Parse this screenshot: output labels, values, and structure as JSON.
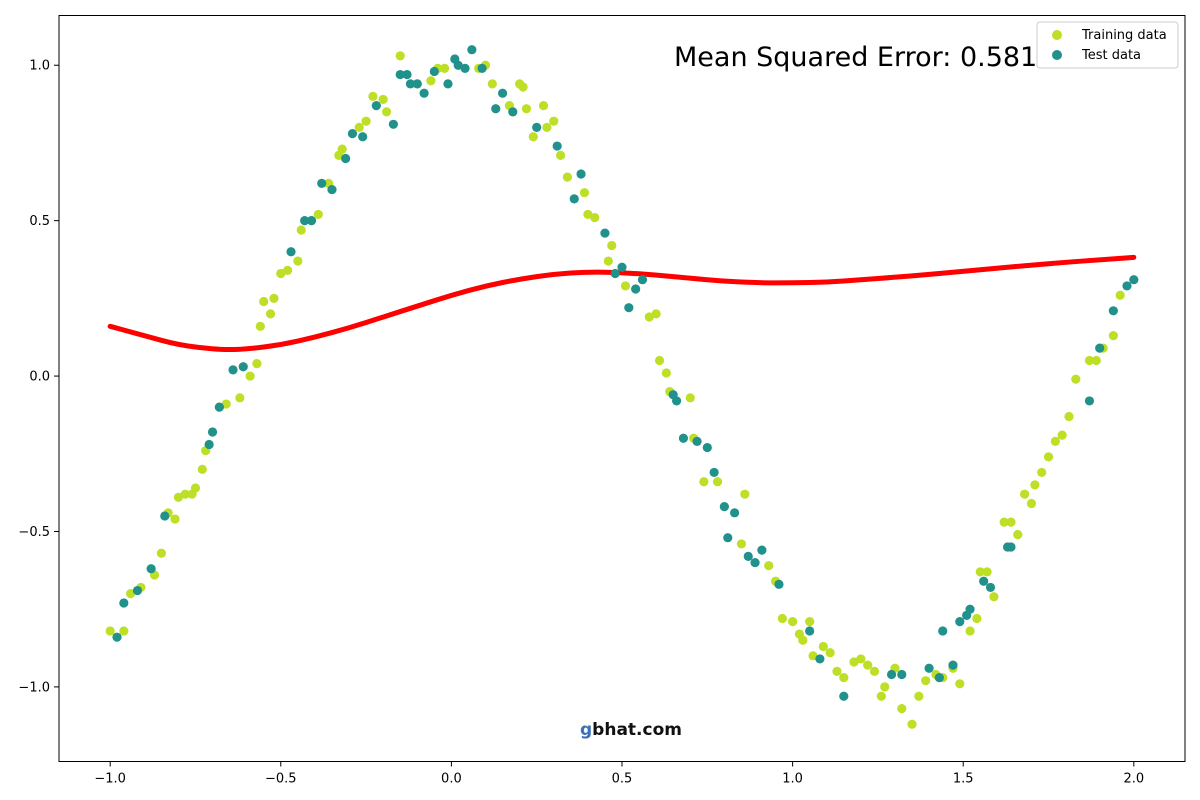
{
  "chart_data": {
    "type": "scatter",
    "xlim": [
      -1.15,
      2.15
    ],
    "ylim": [
      -1.24,
      1.16
    ],
    "xticks": [
      -1.0,
      -0.5,
      0.0,
      0.5,
      1.0,
      1.5,
      2.0
    ],
    "xtick_labels": [
      "−1.0",
      "−0.5",
      "0.0",
      "0.5",
      "1.0",
      "1.5",
      "2.0"
    ],
    "yticks": [
      -1.0,
      -0.5,
      0.0,
      0.5,
      1.0
    ],
    "ytick_labels": [
      "−1.0",
      "−0.5",
      "0.0",
      "0.5",
      "1.0"
    ],
    "grid": false,
    "legend_position": "top-right",
    "annotation": "Mean Squared Error: 0.581",
    "colors": {
      "training": "#bddf26",
      "test": "#21918c",
      "fit": "#ff0000"
    },
    "series": [
      {
        "name": "Training data",
        "kind": "scatter",
        "points": [
          [
            -1.0,
            -0.82
          ],
          [
            -0.96,
            -0.82
          ],
          [
            -0.94,
            -0.7
          ],
          [
            -0.91,
            -0.68
          ],
          [
            -0.87,
            -0.64
          ],
          [
            -0.85,
            -0.57
          ],
          [
            -0.83,
            -0.44
          ],
          [
            -0.81,
            -0.46
          ],
          [
            -0.8,
            -0.39
          ],
          [
            -0.78,
            -0.38
          ],
          [
            -0.76,
            -0.38
          ],
          [
            -0.75,
            -0.36
          ],
          [
            -0.73,
            -0.3
          ],
          [
            -0.72,
            -0.24
          ],
          [
            -0.68,
            -0.1
          ],
          [
            -0.66,
            -0.09
          ],
          [
            -0.62,
            -0.07
          ],
          [
            -0.59,
            0.0
          ],
          [
            -0.57,
            0.04
          ],
          [
            -0.56,
            0.16
          ],
          [
            -0.55,
            0.24
          ],
          [
            -0.53,
            0.2
          ],
          [
            -0.52,
            0.25
          ],
          [
            -0.5,
            0.33
          ],
          [
            -0.48,
            0.34
          ],
          [
            -0.45,
            0.37
          ],
          [
            -0.44,
            0.47
          ],
          [
            -0.41,
            0.5
          ],
          [
            -0.39,
            0.52
          ],
          [
            -0.36,
            0.62
          ],
          [
            -0.33,
            0.71
          ],
          [
            -0.32,
            0.73
          ],
          [
            -0.27,
            0.8
          ],
          [
            -0.25,
            0.82
          ],
          [
            -0.23,
            0.9
          ],
          [
            -0.2,
            0.89
          ],
          [
            -0.19,
            0.85
          ],
          [
            -0.15,
            1.03
          ],
          [
            -0.1,
            0.94
          ],
          [
            -0.06,
            0.95
          ],
          [
            -0.04,
            0.99
          ],
          [
            -0.02,
            0.99
          ],
          [
            0.08,
            0.99
          ],
          [
            0.1,
            1.0
          ],
          [
            0.12,
            0.94
          ],
          [
            0.17,
            0.87
          ],
          [
            0.2,
            0.94
          ],
          [
            0.21,
            0.93
          ],
          [
            0.22,
            0.86
          ],
          [
            0.24,
            0.77
          ],
          [
            0.27,
            0.87
          ],
          [
            0.28,
            0.8
          ],
          [
            0.3,
            0.82
          ],
          [
            0.32,
            0.71
          ],
          [
            0.34,
            0.64
          ],
          [
            0.39,
            0.59
          ],
          [
            0.4,
            0.52
          ],
          [
            0.42,
            0.51
          ],
          [
            0.46,
            0.37
          ],
          [
            0.47,
            0.42
          ],
          [
            0.51,
            0.29
          ],
          [
            0.58,
            0.19
          ],
          [
            0.6,
            0.2
          ],
          [
            0.61,
            0.05
          ],
          [
            0.63,
            0.01
          ],
          [
            0.64,
            -0.05
          ],
          [
            0.7,
            -0.07
          ],
          [
            0.71,
            -0.2
          ],
          [
            0.74,
            -0.34
          ],
          [
            0.78,
            -0.34
          ],
          [
            0.85,
            -0.54
          ],
          [
            0.86,
            -0.38
          ],
          [
            0.93,
            -0.61
          ],
          [
            0.95,
            -0.66
          ],
          [
            0.97,
            -0.78
          ],
          [
            1.0,
            -0.79
          ],
          [
            1.02,
            -0.83
          ],
          [
            1.03,
            -0.85
          ],
          [
            1.05,
            -0.79
          ],
          [
            1.06,
            -0.9
          ],
          [
            1.09,
            -0.87
          ],
          [
            1.11,
            -0.89
          ],
          [
            1.13,
            -0.95
          ],
          [
            1.15,
            -0.97
          ],
          [
            1.18,
            -0.92
          ],
          [
            1.2,
            -0.91
          ],
          [
            1.22,
            -0.93
          ],
          [
            1.24,
            -0.95
          ],
          [
            1.26,
            -1.03
          ],
          [
            1.27,
            -1.0
          ],
          [
            1.3,
            -0.94
          ],
          [
            1.32,
            -1.07
          ],
          [
            1.35,
            -1.12
          ],
          [
            1.37,
            -1.03
          ],
          [
            1.39,
            -0.98
          ],
          [
            1.42,
            -0.96
          ],
          [
            1.44,
            -0.97
          ],
          [
            1.47,
            -0.94
          ],
          [
            1.49,
            -0.99
          ],
          [
            1.52,
            -0.82
          ],
          [
            1.54,
            -0.78
          ],
          [
            1.55,
            -0.63
          ],
          [
            1.57,
            -0.63
          ],
          [
            1.59,
            -0.71
          ],
          [
            1.62,
            -0.47
          ],
          [
            1.64,
            -0.47
          ],
          [
            1.66,
            -0.51
          ],
          [
            1.68,
            -0.38
          ],
          [
            1.7,
            -0.41
          ],
          [
            1.71,
            -0.35
          ],
          [
            1.73,
            -0.31
          ],
          [
            1.75,
            -0.26
          ],
          [
            1.77,
            -0.21
          ],
          [
            1.79,
            -0.19
          ],
          [
            1.81,
            -0.13
          ],
          [
            1.83,
            -0.01
          ],
          [
            1.87,
            0.05
          ],
          [
            1.89,
            0.05
          ],
          [
            1.91,
            0.09
          ],
          [
            1.94,
            0.13
          ],
          [
            1.96,
            0.26
          ]
        ]
      },
      {
        "name": "Test data",
        "kind": "scatter",
        "points": [
          [
            -0.98,
            -0.84
          ],
          [
            -0.96,
            -0.73
          ],
          [
            -0.92,
            -0.69
          ],
          [
            -0.88,
            -0.62
          ],
          [
            -0.84,
            -0.45
          ],
          [
            -0.71,
            -0.22
          ],
          [
            -0.7,
            -0.18
          ],
          [
            -0.68,
            -0.1
          ],
          [
            -0.64,
            0.02
          ],
          [
            -0.61,
            0.03
          ],
          [
            -0.47,
            0.4
          ],
          [
            -0.43,
            0.5
          ],
          [
            -0.41,
            0.5
          ],
          [
            -0.38,
            0.62
          ],
          [
            -0.35,
            0.6
          ],
          [
            -0.31,
            0.7
          ],
          [
            -0.29,
            0.78
          ],
          [
            -0.26,
            0.77
          ],
          [
            -0.22,
            0.87
          ],
          [
            -0.17,
            0.81
          ],
          [
            -0.15,
            0.97
          ],
          [
            -0.13,
            0.97
          ],
          [
            -0.12,
            0.94
          ],
          [
            -0.1,
            0.94
          ],
          [
            -0.08,
            0.91
          ],
          [
            -0.05,
            0.98
          ],
          [
            -0.01,
            0.94
          ],
          [
            0.01,
            1.02
          ],
          [
            0.02,
            1.0
          ],
          [
            0.04,
            0.99
          ],
          [
            0.06,
            1.05
          ],
          [
            0.09,
            0.99
          ],
          [
            0.13,
            0.86
          ],
          [
            0.15,
            0.91
          ],
          [
            0.18,
            0.85
          ],
          [
            0.25,
            0.8
          ],
          [
            0.31,
            0.74
          ],
          [
            0.36,
            0.57
          ],
          [
            0.38,
            0.65
          ],
          [
            0.45,
            0.46
          ],
          [
            0.48,
            0.33
          ],
          [
            0.5,
            0.35
          ],
          [
            0.52,
            0.22
          ],
          [
            0.54,
            0.28
          ],
          [
            0.56,
            0.31
          ],
          [
            0.65,
            -0.06
          ],
          [
            0.66,
            -0.08
          ],
          [
            0.68,
            -0.2
          ],
          [
            0.72,
            -0.21
          ],
          [
            0.75,
            -0.23
          ],
          [
            0.77,
            -0.31
          ],
          [
            0.8,
            -0.42
          ],
          [
            0.81,
            -0.52
          ],
          [
            0.83,
            -0.44
          ],
          [
            0.87,
            -0.58
          ],
          [
            0.89,
            -0.6
          ],
          [
            0.91,
            -0.56
          ],
          [
            0.96,
            -0.67
          ],
          [
            1.05,
            -0.82
          ],
          [
            1.08,
            -0.91
          ],
          [
            1.15,
            -1.03
          ],
          [
            1.29,
            -0.96
          ],
          [
            1.32,
            -0.96
          ],
          [
            1.4,
            -0.94
          ],
          [
            1.43,
            -0.97
          ],
          [
            1.44,
            -0.82
          ],
          [
            1.47,
            -0.93
          ],
          [
            1.49,
            -0.79
          ],
          [
            1.51,
            -0.77
          ],
          [
            1.52,
            -0.75
          ],
          [
            1.56,
            -0.66
          ],
          [
            1.58,
            -0.68
          ],
          [
            1.63,
            -0.55
          ],
          [
            1.64,
            -0.55
          ],
          [
            1.87,
            -0.08
          ],
          [
            1.9,
            0.09
          ],
          [
            1.94,
            0.21
          ],
          [
            1.98,
            0.29
          ],
          [
            2.0,
            0.31
          ]
        ]
      },
      {
        "name": "",
        "kind": "line",
        "points": [
          [
            -1.0,
            0.16
          ],
          [
            -0.9,
            0.13
          ],
          [
            -0.8,
            0.1
          ],
          [
            -0.7,
            0.087
          ],
          [
            -0.65,
            0.085
          ],
          [
            -0.6,
            0.087
          ],
          [
            -0.5,
            0.1
          ],
          [
            -0.4,
            0.125
          ],
          [
            -0.3,
            0.155
          ],
          [
            -0.2,
            0.19
          ],
          [
            -0.1,
            0.225
          ],
          [
            0.0,
            0.26
          ],
          [
            0.1,
            0.29
          ],
          [
            0.2,
            0.312
          ],
          [
            0.3,
            0.328
          ],
          [
            0.4,
            0.335
          ],
          [
            0.5,
            0.333
          ],
          [
            0.6,
            0.325
          ],
          [
            0.7,
            0.315
          ],
          [
            0.8,
            0.305
          ],
          [
            0.9,
            0.3
          ],
          [
            1.0,
            0.3
          ],
          [
            1.1,
            0.302
          ],
          [
            1.2,
            0.31
          ],
          [
            1.3,
            0.318
          ],
          [
            1.4,
            0.327
          ],
          [
            1.5,
            0.337
          ],
          [
            1.6,
            0.347
          ],
          [
            1.7,
            0.357
          ],
          [
            1.8,
            0.366
          ],
          [
            1.9,
            0.374
          ],
          [
            2.0,
            0.382
          ]
        ]
      }
    ]
  },
  "watermark": {
    "text": "gbhat.com",
    "initial_color": "#3b6fb6"
  }
}
